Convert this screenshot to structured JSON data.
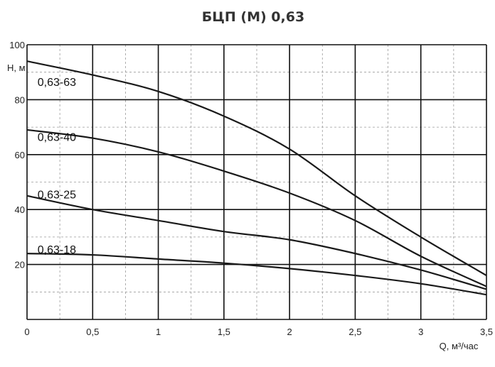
{
  "chart_data": {
    "type": "line",
    "title": "БЦП (М) 0,63",
    "xlabel": "Q, м³/час",
    "ylabel": "Н, м",
    "xlim": [
      0,
      3.5
    ],
    "ylim": [
      0,
      100
    ],
    "x_ticks": [
      {
        "value": 0,
        "label": "0"
      },
      {
        "value": 0.5,
        "label": "0,5"
      },
      {
        "value": 1,
        "label": "1"
      },
      {
        "value": 1.5,
        "label": "1,5"
      },
      {
        "value": 2,
        "label": "2"
      },
      {
        "value": 2.5,
        "label": "2,5"
      },
      {
        "value": 3,
        "label": "3"
      },
      {
        "value": 3.5,
        "label": "3,5"
      }
    ],
    "y_ticks": [
      {
        "value": 20,
        "label": "20"
      },
      {
        "value": 40,
        "label": "40"
      },
      {
        "value": 60,
        "label": "60"
      },
      {
        "value": 80,
        "label": "80"
      },
      {
        "value": 100,
        "label": "100"
      }
    ],
    "grid": true,
    "x_minor_step": 0.25,
    "y_minor_step": 10,
    "series": [
      {
        "name": "0,63-63",
        "x": [
          0,
          0.5,
          1,
          1.5,
          2,
          2.5,
          3,
          3.5
        ],
        "y": [
          94,
          89,
          83,
          74,
          62,
          45,
          30,
          16
        ]
      },
      {
        "name": "0,63-40",
        "x": [
          0,
          0.5,
          1,
          1.5,
          2,
          2.5,
          3,
          3.5
        ],
        "y": [
          69,
          66,
          61,
          54,
          46,
          36,
          23,
          12
        ]
      },
      {
        "name": "0,63-25",
        "x": [
          0,
          0.5,
          1,
          1.5,
          2,
          2.5,
          3,
          3.5
        ],
        "y": [
          45,
          40,
          36,
          32,
          29,
          24,
          18,
          11
        ]
      },
      {
        "name": "0,63-18",
        "x": [
          0,
          0.5,
          1,
          1.5,
          2,
          2.5,
          3,
          3.5
        ],
        "y": [
          24,
          23.5,
          22,
          20.5,
          18.5,
          16,
          13,
          9
        ]
      }
    ],
    "series_label_positions": [
      {
        "x": 0.08,
        "y": 85
      },
      {
        "x": 0.08,
        "y": 65
      },
      {
        "x": 0.08,
        "y": 44
      },
      {
        "x": 0.08,
        "y": 24
      }
    ],
    "colors": {
      "line": "#1a1a1a",
      "grid_major": "#111111",
      "grid_minor": "#9a9a9a"
    }
  }
}
